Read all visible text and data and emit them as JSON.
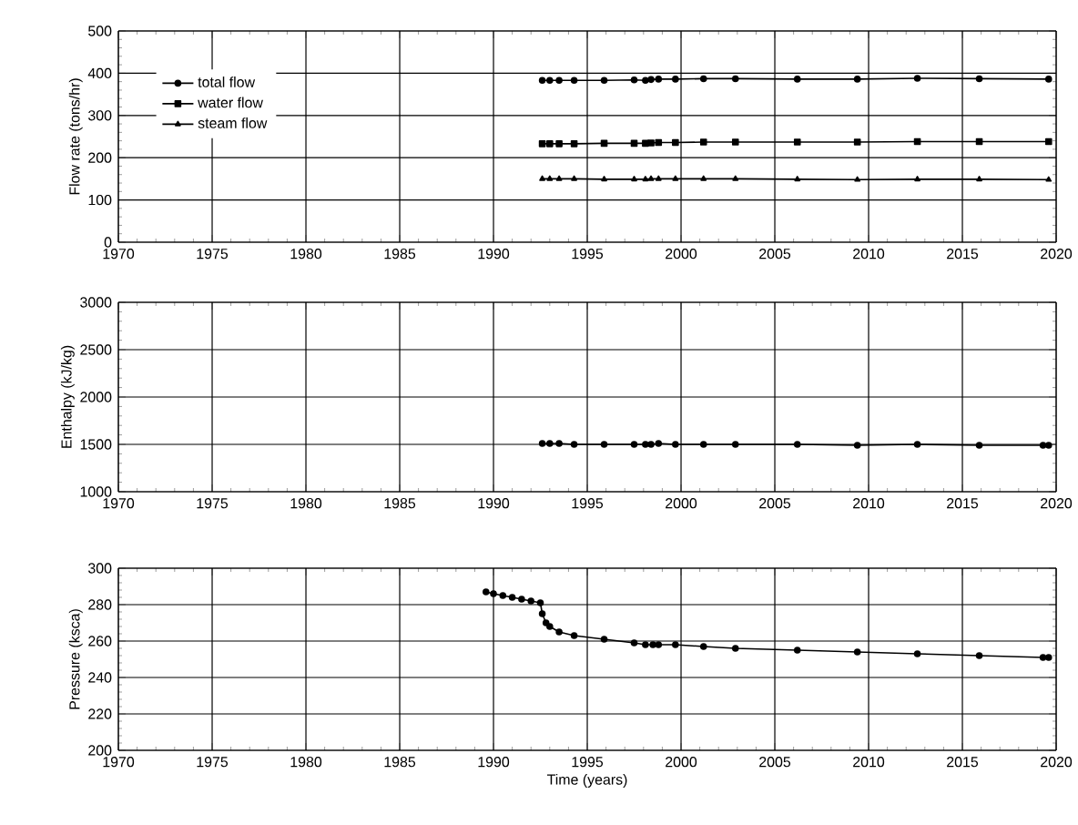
{
  "chart_data": [
    {
      "type": "line",
      "ylabel": "Flow rate (tons/hr)",
      "xlim": [
        1970,
        2020
      ],
      "xticks": [
        1970,
        1975,
        1980,
        1985,
        1990,
        1995,
        2000,
        2005,
        2010,
        2015,
        2020
      ],
      "ylim": [
        0,
        500
      ],
      "yticks": [
        0,
        100,
        200,
        300,
        400,
        500
      ],
      "grid": true,
      "legend": "top left",
      "line_style": "solid",
      "x": [
        1992.6,
        1993.0,
        1993.5,
        1994.3,
        1995.9,
        1997.5,
        1998.1,
        1998.4,
        1998.8,
        1999.7,
        2001.2,
        2002.9,
        2006.2,
        2009.4,
        2012.6,
        2015.9,
        2019.6
      ],
      "series": [
        {
          "name": "total flow",
          "color": "#000000",
          "marker": "circle",
          "values": [
            383,
            383,
            383,
            383,
            383,
            384,
            383,
            385,
            386,
            386,
            387,
            387,
            386,
            386,
            388,
            387,
            386
          ]
        },
        {
          "name": "water flow",
          "color": "#000000",
          "marker": "square",
          "values": [
            233,
            233,
            233,
            233,
            234,
            234,
            234,
            235,
            236,
            236,
            237,
            237,
            237,
            237,
            238,
            238,
            238
          ]
        },
        {
          "name": "steam flow",
          "color": "#000000",
          "marker": "triangle",
          "values": [
            150,
            150,
            150,
            150,
            149,
            149,
            149,
            150,
            150,
            150,
            150,
            150,
            149,
            148,
            149,
            149,
            148
          ]
        }
      ]
    },
    {
      "type": "line",
      "ylabel": "Enthalpy (kJ/kg)",
      "xlim": [
        1970,
        2020
      ],
      "xticks": [
        1970,
        1975,
        1980,
        1985,
        1990,
        1995,
        2000,
        2005,
        2010,
        2015,
        2020
      ],
      "ylim": [
        1000,
        3000
      ],
      "yticks": [
        1000,
        1500,
        2000,
        2500,
        3000
      ],
      "grid": true,
      "line_style": "solid",
      "marker": "circle",
      "x": [
        1992.6,
        1993.0,
        1993.5,
        1994.3,
        1995.9,
        1997.5,
        1998.1,
        1998.4,
        1998.8,
        1999.7,
        2001.2,
        2002.9,
        2006.2,
        2009.4,
        2012.6,
        2015.9,
        2019.3,
        2019.6
      ],
      "series": [
        {
          "color": "#000000",
          "values": [
            1510,
            1510,
            1510,
            1500,
            1500,
            1500,
            1500,
            1500,
            1510,
            1500,
            1500,
            1500,
            1500,
            1490,
            1500,
            1490,
            1490,
            1490
          ]
        }
      ]
    },
    {
      "type": "line",
      "xlabel": "Time (years)",
      "ylabel": "Pressure (ksca)",
      "xlim": [
        1970,
        2020
      ],
      "xticks": [
        1970,
        1975,
        1980,
        1985,
        1990,
        1995,
        2000,
        2005,
        2010,
        2015,
        2020
      ],
      "ylim": [
        200,
        300
      ],
      "yticks": [
        200,
        220,
        240,
        260,
        280,
        300
      ],
      "grid": true,
      "line_style": "solid",
      "marker": "circle",
      "x": [
        1989.6,
        1990.0,
        1990.5,
        1991.0,
        1991.5,
        1992.0,
        1992.5,
        1992.6,
        1992.8,
        1993.0,
        1993.5,
        1994.3,
        1995.9,
        1997.5,
        1998.1,
        1998.5,
        1998.8,
        1999.7,
        2001.2,
        2002.9,
        2006.2,
        2009.4,
        2012.6,
        2015.9,
        2019.3,
        2019.6
      ],
      "series": [
        {
          "color": "#000000",
          "values": [
            287,
            286,
            285,
            284,
            283,
            282,
            281,
            275,
            270,
            268,
            265,
            263,
            261,
            259,
            258,
            258,
            258,
            258,
            257,
            256,
            255,
            254,
            253,
            252,
            251,
            251
          ]
        }
      ]
    }
  ]
}
